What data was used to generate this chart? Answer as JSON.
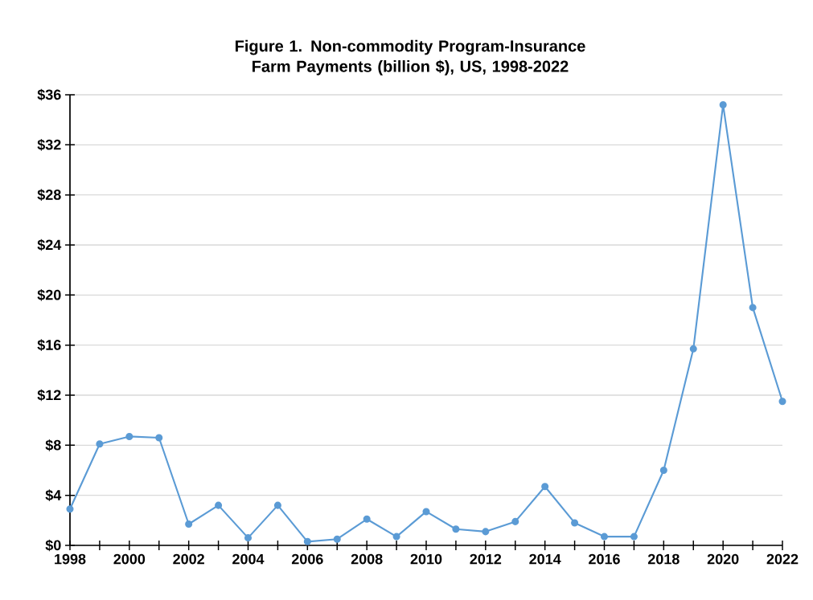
{
  "chart_data": {
    "type": "line",
    "title": "Figure 1. Non-commodity Program-Insurance Farm Payments (billion $), US, 1998-2022",
    "x": [
      1998,
      1999,
      2000,
      2001,
      2002,
      2003,
      2004,
      2005,
      2006,
      2007,
      2008,
      2009,
      2010,
      2011,
      2012,
      2013,
      2014,
      2015,
      2016,
      2017,
      2018,
      2019,
      2020,
      2021,
      2022
    ],
    "series": [
      {
        "color": "#5b9bd5",
        "values": [
          2.9,
          8.1,
          8.7,
          8.6,
          1.7,
          3.2,
          0.6,
          3.2,
          0.3,
          0.5,
          2.1,
          0.7,
          2.7,
          1.3,
          1.1,
          1.9,
          4.7,
          1.8,
          0.7,
          0.7,
          6.0,
          15.7,
          35.2,
          19.0,
          11.5
        ]
      }
    ],
    "xlim": [
      1998,
      2022
    ],
    "xticks": [
      1998,
      {
        "value": 1999,
        "label": null
      },
      2000,
      {
        "value": 2001,
        "label": null
      },
      2002,
      {
        "value": 2003,
        "label": null
      },
      2004,
      {
        "value": 2005,
        "label": null
      },
      2006,
      {
        "value": 2007,
        "label": null
      },
      2008,
      {
        "value": 2009,
        "label": null
      },
      2010,
      {
        "value": 2011,
        "label": null
      },
      2012,
      {
        "value": 2013,
        "label": null
      },
      2014,
      {
        "value": 2015,
        "label": null
      },
      2016,
      {
        "value": 2017,
        "label": null
      },
      2018,
      {
        "value": 2019,
        "label": null
      },
      2020,
      {
        "value": 2021,
        "label": null
      },
      2022
    ],
    "ylim": [
      0,
      36
    ],
    "yticks": [
      {
        "value": 0,
        "label": "$0"
      },
      {
        "value": 4,
        "label": "$4"
      },
      {
        "value": 8,
        "label": "$8"
      },
      {
        "value": 12,
        "label": "$12"
      },
      {
        "value": 16,
        "label": "$16"
      },
      {
        "value": 20,
        "label": "$20"
      },
      {
        "value": 24,
        "label": "$24"
      },
      {
        "value": 28,
        "label": "$28"
      },
      {
        "value": 32,
        "label": "$32"
      },
      {
        "value": 36,
        "label": "$36"
      }
    ],
    "grid": "y",
    "marker": "circle",
    "line_style": "solid"
  }
}
